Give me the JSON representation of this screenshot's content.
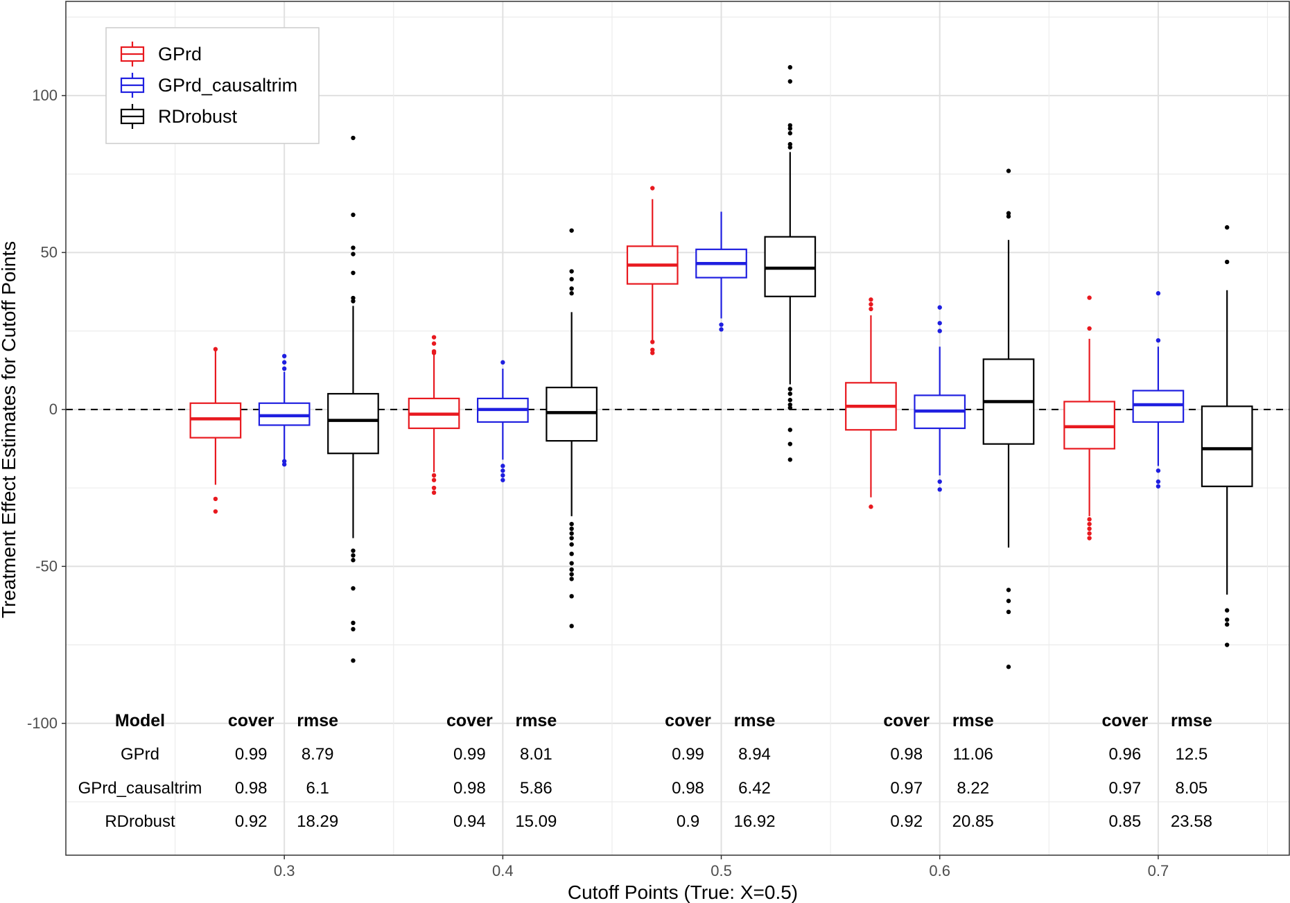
{
  "chart_data": {
    "type": "boxplot",
    "xlabel": "Cutoff Points (True: X=0.5)",
    "ylabel": "Treatment Effect Estimates for Cutoff Points",
    "x_ticks": [
      "0.3",
      "0.4",
      "0.5",
      "0.6",
      "0.7"
    ],
    "y_ticks": [
      100,
      50,
      0,
      -50,
      -100
    ],
    "y_tick_labels": [
      "100",
      "50",
      "0",
      "-50",
      "-100"
    ],
    "xlim": [
      0.2,
      0.76
    ],
    "ylim": [
      -142,
      130
    ],
    "reference_line": 0,
    "legend": [
      {
        "name": "GPrd",
        "color": "#e8191f"
      },
      {
        "name": "GPrd_causaltrim",
        "color": "#1f1fe0"
      },
      {
        "name": "RDrobust",
        "color": "#000000"
      }
    ],
    "series": [
      {
        "name": "GPrd",
        "color": "#e8191f",
        "boxes": [
          {
            "x": 0.3,
            "q1": -9,
            "median": -3,
            "q3": 2,
            "wlow": -24,
            "whigh": 19,
            "outliers": [
              -28.5,
              -32.5,
              19.2
            ]
          },
          {
            "x": 0.4,
            "q1": -6,
            "median": -1.5,
            "q3": 3.5,
            "wlow": -20,
            "whigh": 18,
            "outliers": [
              -21,
              -22.5,
              -25,
              -26.5,
              18,
              18.5,
              21,
              23
            ]
          },
          {
            "x": 0.5,
            "q1": 40,
            "median": 46,
            "q3": 52,
            "wlow": 22,
            "whigh": 67,
            "outliers": [
              21.5,
              19,
              18,
              70.5
            ]
          },
          {
            "x": 0.6,
            "q1": -6.5,
            "median": 1,
            "q3": 8.5,
            "wlow": -28,
            "whigh": 30,
            "outliers": [
              -31,
              32,
              33.5,
              35
            ]
          },
          {
            "x": 0.7,
            "q1": -12.5,
            "median": -5.5,
            "q3": 2.5,
            "wlow": -34,
            "whigh": 22.5,
            "outliers": [
              -35,
              -36.5,
              -38,
              -39.5,
              -41,
              25.8,
              35.6
            ]
          }
        ]
      },
      {
        "name": "GPrd_causaltrim",
        "color": "#1f1fe0",
        "boxes": [
          {
            "x": 0.3,
            "q1": -5,
            "median": -2,
            "q3": 2,
            "wlow": -16,
            "whigh": 12,
            "outliers": [
              -16.5,
              -17.5,
              13,
              15,
              17
            ]
          },
          {
            "x": 0.4,
            "q1": -4,
            "median": 0,
            "q3": 3.5,
            "wlow": -16,
            "whigh": 13,
            "outliers": [
              -18,
              -19.5,
              -21,
              -22.5,
              15
            ]
          },
          {
            "x": 0.5,
            "q1": 42,
            "median": 46.5,
            "q3": 51,
            "wlow": 29,
            "whigh": 63,
            "outliers": [
              27,
              25.5
            ]
          },
          {
            "x": 0.6,
            "q1": -6,
            "median": -0.5,
            "q3": 4.5,
            "wlow": -21,
            "whigh": 20,
            "outliers": [
              -23,
              -25.5,
              25,
              27.5,
              32.5
            ]
          },
          {
            "x": 0.7,
            "q1": -4,
            "median": 1.5,
            "q3": 6,
            "wlow": -18,
            "whigh": 20,
            "outliers": [
              -19.5,
              -23,
              -24.5,
              22,
              37
            ]
          }
        ]
      },
      {
        "name": "RDrobust",
        "color": "#000000",
        "boxes": [
          {
            "x": 0.3,
            "q1": -14,
            "median": -3.5,
            "q3": 5,
            "wlow": -41,
            "whigh": 33,
            "outliers": [
              -45,
              -46.5,
              -48,
              -57,
              -68,
              -70,
              -80,
              34.5,
              35.5,
              43.5,
              49.5,
              51.5,
              62,
              86.5
            ]
          },
          {
            "x": 0.4,
            "q1": -10,
            "median": -1,
            "q3": 7,
            "wlow": -34,
            "whigh": 31,
            "outliers": [
              -36.5,
              -38,
              -39.5,
              -41,
              -43,
              -46,
              -49,
              -51,
              -52.5,
              -54,
              -59.5,
              -69,
              37,
              38.5,
              41.5,
              44,
              57
            ]
          },
          {
            "x": 0.5,
            "q1": 36,
            "median": 45,
            "q3": 55,
            "wlow": 8,
            "whigh": 82,
            "outliers": [
              6.5,
              5,
              3,
              1.5,
              0.5,
              -6.5,
              -11,
              -16,
              83.5,
              84.5,
              88,
              89.5,
              90.5,
              104.5,
              109
            ]
          },
          {
            "x": 0.6,
            "q1": -11,
            "median": 2.5,
            "q3": 16,
            "wlow": -44,
            "whigh": 54,
            "outliers": [
              -57.5,
              -61,
              -64.5,
              -82,
              61.5,
              62.5,
              76
            ]
          },
          {
            "x": 0.7,
            "q1": -24.5,
            "median": -12.5,
            "q3": 1,
            "wlow": -59,
            "whigh": 38,
            "outliers": [
              -64,
              -67,
              -68.5,
              -75,
              47,
              58
            ]
          }
        ]
      }
    ]
  },
  "table": {
    "headers": {
      "model": "Model",
      "cover": "cover",
      "rmse": "rmse"
    },
    "models": [
      "GPrd",
      "GPrd_causaltrim",
      "RDrobust"
    ],
    "groups": [
      {
        "cutoff": "0.3",
        "rows": [
          {
            "cover": "0.99",
            "rmse": "8.79"
          },
          {
            "cover": "0.98",
            "rmse": "6.1"
          },
          {
            "cover": "0.92",
            "rmse": "18.29"
          }
        ]
      },
      {
        "cutoff": "0.4",
        "rows": [
          {
            "cover": "0.99",
            "rmse": "8.01"
          },
          {
            "cover": "0.98",
            "rmse": "5.86"
          },
          {
            "cover": "0.94",
            "rmse": "15.09"
          }
        ]
      },
      {
        "cutoff": "0.5",
        "rows": [
          {
            "cover": "0.99",
            "rmse": "8.94"
          },
          {
            "cover": "0.98",
            "rmse": "6.42"
          },
          {
            "cover": "0.9",
            "rmse": "16.92"
          }
        ]
      },
      {
        "cutoff": "0.6",
        "rows": [
          {
            "cover": "0.98",
            "rmse": "11.06"
          },
          {
            "cover": "0.97",
            "rmse": "8.22"
          },
          {
            "cover": "0.92",
            "rmse": "20.85"
          }
        ]
      },
      {
        "cutoff": "0.7",
        "rows": [
          {
            "cover": "0.96",
            "rmse": "12.5"
          },
          {
            "cover": "0.97",
            "rmse": "8.05"
          },
          {
            "cover": "0.85",
            "rmse": "23.58"
          }
        ]
      }
    ]
  }
}
